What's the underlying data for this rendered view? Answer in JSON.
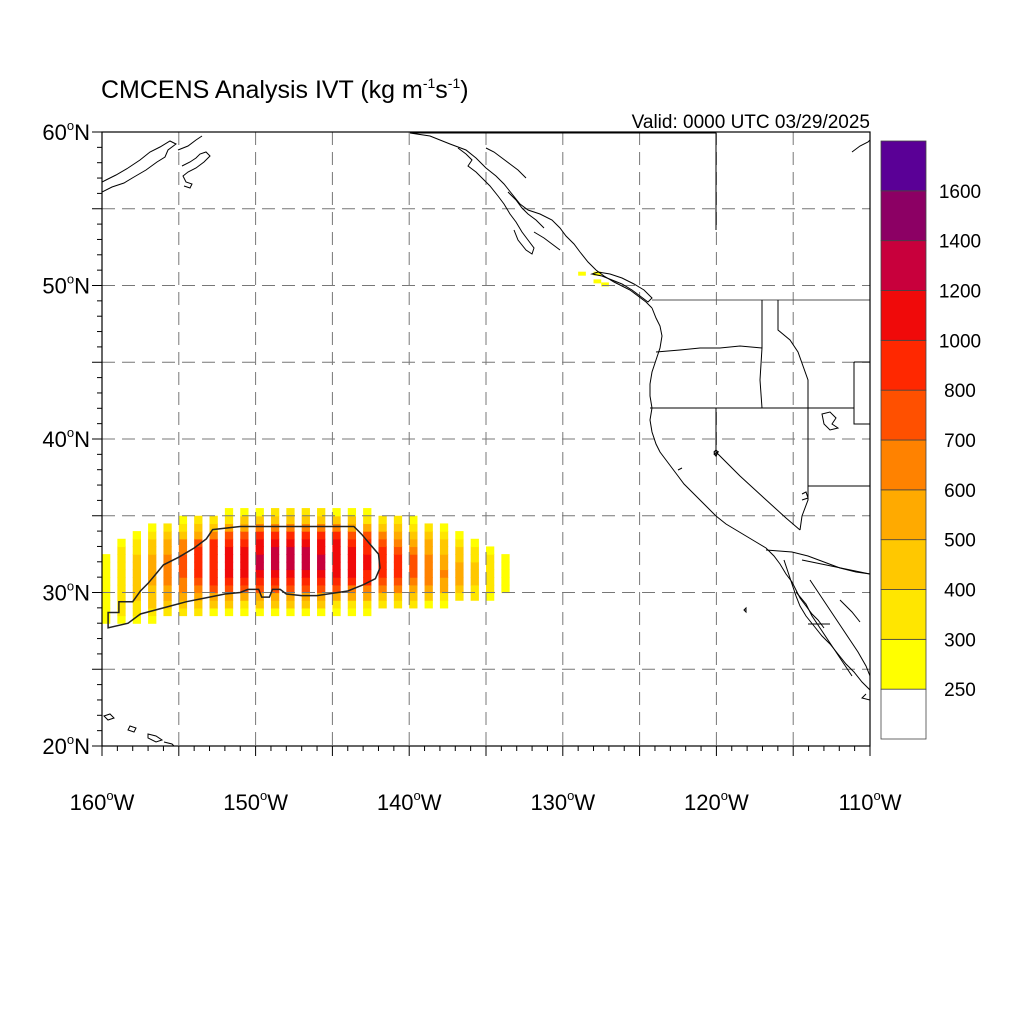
{
  "map": {
    "title": "CMCENS Analysis IVT",
    "units_prefix": "(kg m",
    "units_exp1": "-1",
    "units_mid": "s",
    "units_exp2": "-1",
    "units_suffix": ")",
    "valid": "Valid: 0000 UTC 03/29/2025",
    "lon_range": [
      -160,
      -110
    ],
    "lat_range": [
      20,
      60
    ],
    "gridlines": "dashed, every 5 degrees",
    "lat_labels": [
      {
        "value": 60,
        "num": "60",
        "deg": "o",
        "hemi": "N"
      },
      {
        "value": 50,
        "num": "50",
        "deg": "o",
        "hemi": "N"
      },
      {
        "value": 40,
        "num": "40",
        "deg": "o",
        "hemi": "N"
      },
      {
        "value": 30,
        "num": "30",
        "deg": "o",
        "hemi": "N"
      },
      {
        "value": 20,
        "num": "20",
        "deg": "o",
        "hemi": "N"
      }
    ],
    "lon_labels": [
      {
        "value": -160,
        "num": "160",
        "deg": "o",
        "hemi": "W"
      },
      {
        "value": -150,
        "num": "150",
        "deg": "o",
        "hemi": "W"
      },
      {
        "value": -140,
        "num": "140",
        "deg": "o",
        "hemi": "W"
      },
      {
        "value": -130,
        "num": "130",
        "deg": "o",
        "hemi": "W"
      },
      {
        "value": -120,
        "num": "120",
        "deg": "o",
        "hemi": "W"
      },
      {
        "value": -110,
        "num": "110",
        "deg": "o",
        "hemi": "W"
      }
    ]
  },
  "colorbar": {
    "labels": [
      "250",
      "300",
      "400",
      "500",
      "600",
      "700",
      "800",
      "1000",
      "1200",
      "1400",
      "1600"
    ],
    "colors": [
      "#ffffff",
      "#ffff00",
      "#ffe600",
      "#ffc800",
      "#ffaa00",
      "#ff8200",
      "#ff5000",
      "#ff2800",
      "#f00a0a",
      "#c8003c",
      "#8c0064",
      "#5a0096"
    ]
  },
  "ivt_field": {
    "description_units": "kg m-1 s-1",
    "contour_level": 500
  }
}
